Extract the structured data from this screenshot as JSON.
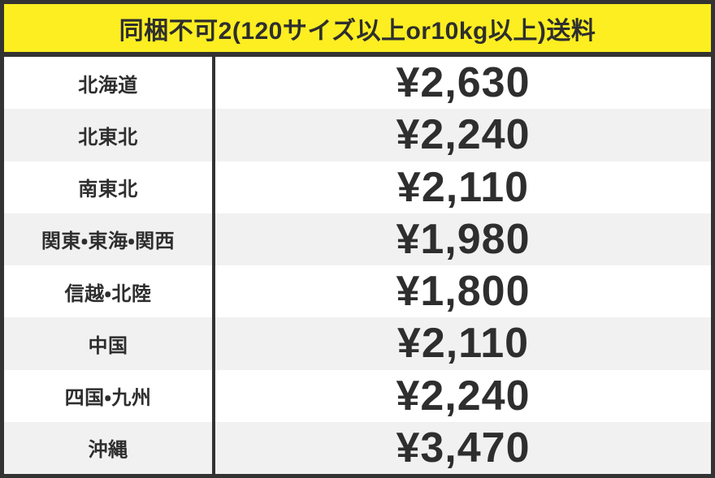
{
  "header": {
    "title": "同梱不可2(120サイズ以上or10kg以上)送料"
  },
  "chart_data": {
    "type": "table",
    "title": "同梱不可2(120サイズ以上or10kg以上)送料",
    "rows": [
      {
        "region": "北海道",
        "fee": "¥2,630"
      },
      {
        "region": "北東北",
        "fee": "¥2,240"
      },
      {
        "region": "南東北",
        "fee": "¥2,110"
      },
      {
        "region": "関東・東海・関西",
        "fee": "¥1,980"
      },
      {
        "region": "信越・北陸",
        "fee": "¥1,800"
      },
      {
        "region": "中国",
        "fee": "¥2,110"
      },
      {
        "region": "四国・九州",
        "fee": "¥2,240"
      },
      {
        "region": "沖縄",
        "fee": "¥3,470"
      }
    ],
    "fees_yen": [
      2630,
      2240,
      2110,
      1980,
      1800,
      2110,
      2240,
      3470
    ],
    "layout": {
      "striped_rows": true,
      "column_divider": true
    }
  },
  "colors": {
    "accent_yellow": "#fcee21",
    "border_dark": "#333333",
    "row_white": "#ffffff",
    "row_gray": "#f1f1f1",
    "text_dark": "#2e2e2e"
  }
}
